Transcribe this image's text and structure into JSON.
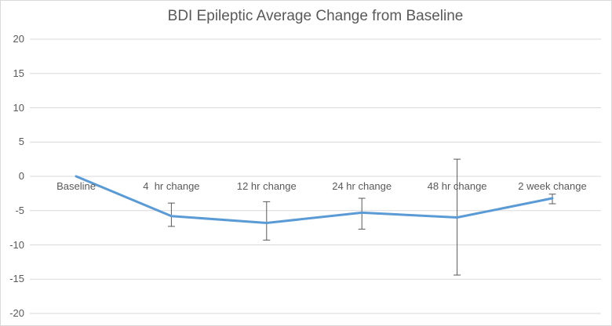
{
  "chart_data": {
    "type": "line",
    "title": "BDI Epileptic Average Change from Baseline",
    "categories": [
      "Baseline",
      "4  hr change",
      "12 hr change",
      "24 hr change",
      "48 hr change",
      "2 week change"
    ],
    "series": [
      {
        "values": [
          0,
          -5.8,
          -6.8,
          -5.3,
          -6.0,
          -3.2
        ],
        "error_top": [
          null,
          -3.9,
          -3.7,
          -3.2,
          2.5,
          -2.6
        ],
        "error_bottom": [
          null,
          -7.3,
          -9.3,
          -7.7,
          -14.4,
          -4.0
        ]
      }
    ],
    "y_ticks": [
      20,
      15,
      10,
      5,
      0,
      -5,
      -10,
      -15,
      -20
    ],
    "ylim": [
      -20,
      20
    ],
    "xlabel": "",
    "ylabel": "",
    "grid": true,
    "legend": false,
    "colors": {
      "line": "#5B9BD5",
      "error_bar": "#595959",
      "gridline": "#D9D9D9",
      "text": "#595959",
      "border": "#D9D9D9",
      "background": "#FFFFFF"
    }
  }
}
